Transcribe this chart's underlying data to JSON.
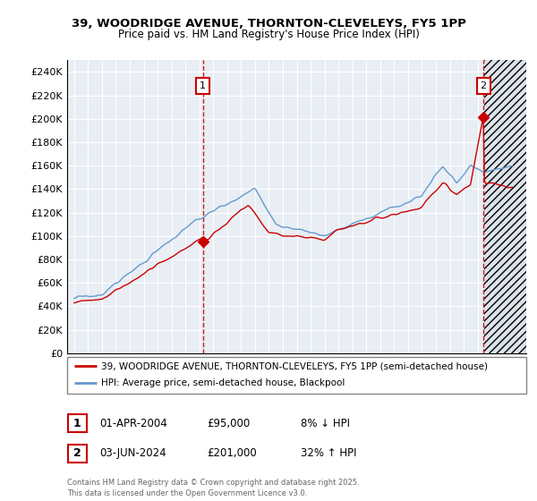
{
  "title_line1": "39, WOODRIDGE AVENUE, THORNTON-CLEVELEYS, FY5 1PP",
  "title_line2": "Price paid vs. HM Land Registry's House Price Index (HPI)",
  "legend_line1": "39, WOODRIDGE AVENUE, THORNTON-CLEVELEYS, FY5 1PP (semi-detached house)",
  "legend_line2": "HPI: Average price, semi-detached house, Blackpool",
  "footer": "Contains HM Land Registry data © Crown copyright and database right 2025.\nThis data is licensed under the Open Government Licence v3.0.",
  "annotation1_label": "1",
  "annotation1_date": "01-APR-2004",
  "annotation1_price": "£95,000",
  "annotation1_hpi": "8% ↓ HPI",
  "annotation2_label": "2",
  "annotation2_date": "03-JUN-2024",
  "annotation2_price": "£201,000",
  "annotation2_hpi": "32% ↑ HPI",
  "sale1_year": 2004.25,
  "sale1_price": 95000,
  "sale2_year": 2024.42,
  "sale2_price": 201000,
  "red_color": "#CC0000",
  "blue_color": "#6699CC",
  "bg_color": "#E8EEF4",
  "grid_color": "#FFFFFF",
  "ylim_min": 0,
  "ylim_max": 250000,
  "xlim_min": 1994.5,
  "xlim_max": 2027.5,
  "yticks": [
    0,
    20000,
    40000,
    60000,
    80000,
    100000,
    120000,
    140000,
    160000,
    180000,
    200000,
    220000,
    240000
  ],
  "xticks": [
    1995,
    1996,
    1997,
    1998,
    1999,
    2000,
    2001,
    2002,
    2003,
    2004,
    2005,
    2006,
    2007,
    2008,
    2009,
    2010,
    2011,
    2012,
    2013,
    2014,
    2015,
    2016,
    2017,
    2018,
    2019,
    2020,
    2021,
    2022,
    2023,
    2024,
    2025,
    2026,
    2027
  ],
  "hatch_start": 2024.5,
  "hatch_end": 2027.5
}
